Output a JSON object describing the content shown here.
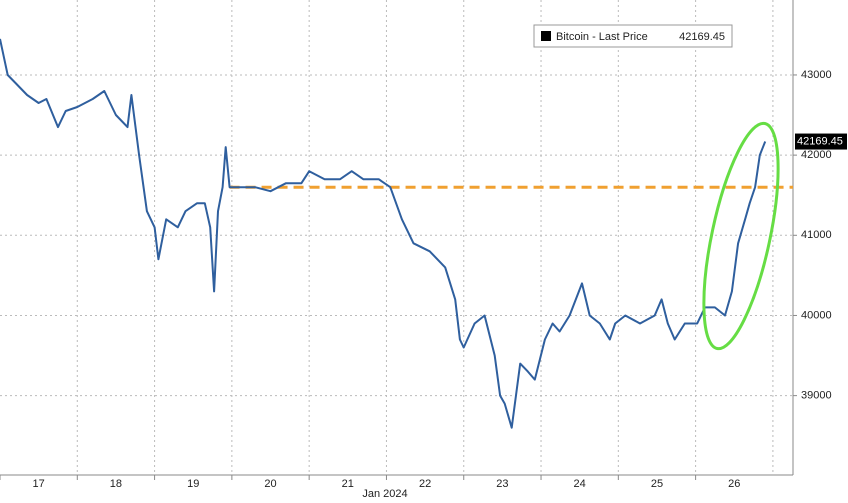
{
  "chart_data": {
    "type": "line",
    "x_axis_label": "Jan 2024",
    "x": [
      17.0,
      17.1,
      17.2,
      17.35,
      17.5,
      17.6,
      17.75,
      17.85,
      18.0,
      18.2,
      18.35,
      18.5,
      18.65,
      18.7,
      18.8,
      18.9,
      19.0,
      19.05,
      19.15,
      19.3,
      19.4,
      19.55,
      19.65,
      19.72,
      19.77,
      19.82,
      19.88,
      19.92,
      19.97,
      20.1,
      20.3,
      20.5,
      20.7,
      20.9,
      21.0,
      21.2,
      21.4,
      21.55,
      21.7,
      21.9,
      22.05,
      22.2,
      22.35,
      22.56,
      22.76,
      22.89,
      22.95,
      23.0,
      23.14,
      23.27,
      23.4,
      23.47,
      23.53,
      23.62,
      23.73,
      23.83,
      23.92,
      24.05,
      24.15,
      24.24,
      24.37,
      24.53,
      24.63,
      24.76,
      24.89,
      24.96,
      25.09,
      25.28,
      25.47,
      25.56,
      25.64,
      25.73,
      25.86,
      26.02,
      26.12,
      26.25,
      26.38,
      26.47,
      26.55,
      26.64,
      26.7,
      26.77,
      26.83,
      26.9
    ],
    "series": [
      {
        "name": "Bitcoin - Last Price",
        "color": "#2f5f9e",
        "values": [
          43450,
          43000,
          42900,
          42750,
          42650,
          42700,
          42350,
          42550,
          42600,
          42700,
          42800,
          42500,
          42350,
          42750,
          42000,
          41300,
          41100,
          40700,
          41200,
          41100,
          41300,
          41400,
          41400,
          41100,
          40300,
          41300,
          41600,
          42100,
          41600,
          41600,
          41600,
          41550,
          41650,
          41650,
          41800,
          41700,
          41700,
          41800,
          41700,
          41700,
          41600,
          41200,
          40900,
          40800,
          40600,
          40200,
          39700,
          39600,
          39900,
          40000,
          39500,
          39000,
          38900,
          38600,
          39400,
          39300,
          39200,
          39700,
          39900,
          39800,
          40000,
          40400,
          40000,
          39900,
          39700,
          39900,
          40000,
          39900,
          40000,
          40200,
          39900,
          39700,
          39900,
          39900,
          40100,
          40100,
          40000,
          40300,
          40900,
          41200,
          41400,
          41600,
          42000,
          42169.45
        ]
      }
    ],
    "reference_line": {
      "value": 41600,
      "x_start": 19.97,
      "color": "#f0a030"
    },
    "xlim": [
      17,
      27.26
    ],
    "xticks": [
      17,
      18,
      19,
      20,
      21,
      22,
      23,
      24,
      25,
      26
    ],
    "ylim": [
      38010,
      43935
    ],
    "yticks": [
      39000,
      40000,
      41000,
      42000,
      43000
    ],
    "grid": true
  }
}
